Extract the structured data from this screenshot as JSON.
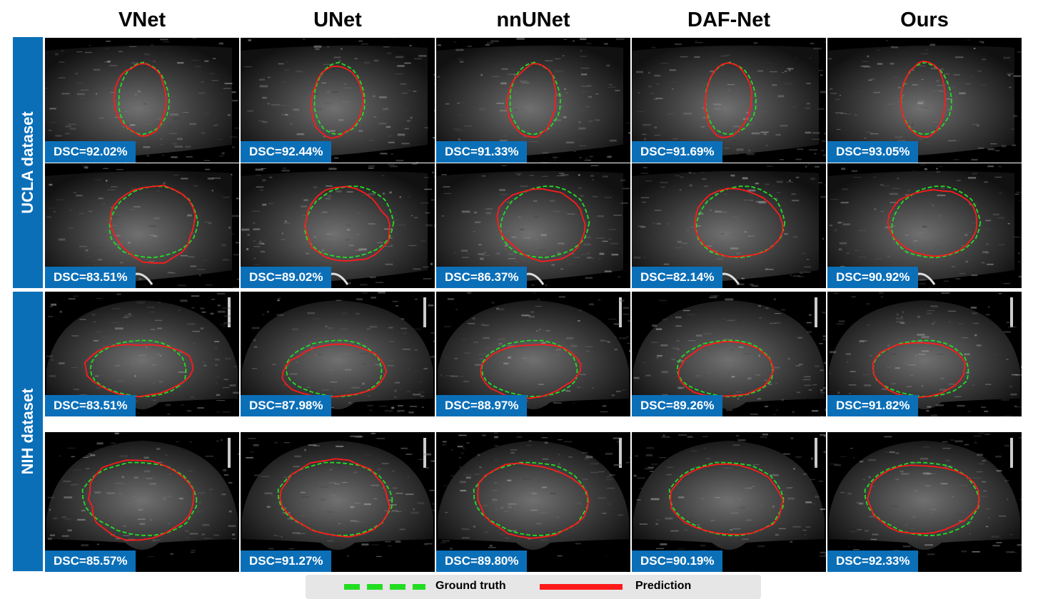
{
  "columns": [
    "VNet",
    "UNet",
    "nnUNet",
    "DAF-Net",
    "Ours"
  ],
  "rows": [
    {
      "group": "UCLA dataset",
      "dsc": [
        "DSC=92.02%",
        "DSC=92.44%",
        "DSC=91.33%",
        "DSC=91.69%",
        "DSC=93.05%"
      ]
    },
    {
      "group": "UCLA dataset",
      "dsc": [
        "DSC=83.51%",
        "DSC=89.02%",
        "DSC=86.37%",
        "DSC=82.14%",
        "DSC=90.92%"
      ]
    },
    {
      "group": "NIH dataset",
      "dsc": [
        "DSC=83.51%",
        "DSC=87.98%",
        "DSC=88.97%",
        "DSC=89.26%",
        "DSC=91.82%"
      ]
    },
    {
      "group": "NIH dataset",
      "dsc": [
        "DSC=85.57%",
        "DSC=91.27%",
        "DSC=89.80%",
        "DSC=90.19%",
        "DSC=92.33%"
      ]
    }
  ],
  "groups": [
    "UCLA dataset",
    "NIH dataset"
  ],
  "legend": {
    "ground_truth": "Ground truth",
    "prediction": "Prediction"
  },
  "colors": {
    "badge": "#0b6fb8",
    "ground_truth": "#22dd22",
    "prediction": "#ff1a1a"
  }
}
